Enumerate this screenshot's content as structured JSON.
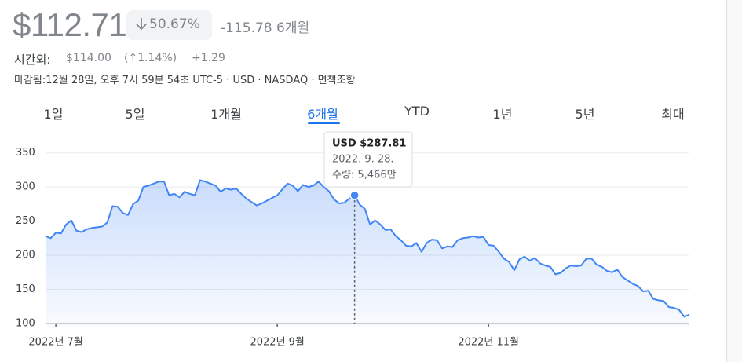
{
  "header": {
    "price": "$112.71",
    "change_pct": "50.67%",
    "change_abs": "-115.78",
    "period": "6개월"
  },
  "after_hours": {
    "label": "시간외:",
    "price": "$114.00",
    "change_pct": "(↑1.14%)",
    "change_abs": "+1.29"
  },
  "meta": "마감됨:12월 28일, 오후 7시 59분 54초 UTC-5 · USD · NASDAQ · 면책조항",
  "tabs": [
    "1일",
    "5일",
    "1개월",
    "6개월",
    "YTD",
    "1년",
    "5년",
    "최대"
  ],
  "chart_data": {
    "type": "line",
    "color": "#4285f4",
    "values": [
      228,
      225,
      233,
      232,
      245,
      251,
      236,
      234,
      238,
      240,
      241,
      242,
      248,
      272,
      271,
      262,
      259,
      275,
      280,
      300,
      302,
      305,
      308,
      308,
      288,
      290,
      285,
      293,
      290,
      288,
      310,
      308,
      305,
      302,
      293,
      298,
      296,
      298,
      290,
      283,
      278,
      273,
      276,
      280,
      284,
      288,
      297,
      305,
      302,
      294,
      303,
      300,
      302,
      308,
      300,
      294,
      282,
      276,
      277,
      283,
      287.81,
      274,
      268,
      245,
      251,
      245,
      237,
      238,
      228,
      222,
      214,
      213,
      218,
      205,
      218,
      223,
      222,
      210,
      213,
      212,
      222,
      225,
      226,
      228,
      226,
      227,
      215,
      214,
      205,
      195,
      190,
      178,
      194,
      198,
      192,
      196,
      188,
      185,
      183,
      172,
      174,
      181,
      185,
      184,
      185,
      195,
      195,
      186,
      183,
      177,
      175,
      179,
      168,
      163,
      158,
      155,
      147,
      148,
      136,
      134,
      133,
      124,
      123,
      120,
      110,
      113
    ],
    "xlim": [
      0,
      125
    ],
    "xticks": [
      {
        "value": 2,
        "label": "2022년 7월"
      },
      {
        "value": 45,
        "label": "2022년 9월"
      },
      {
        "value": 86,
        "label": "2022년 11월"
      }
    ],
    "ylim": [
      95,
      360
    ],
    "yticks": [
      100,
      150,
      200,
      250,
      300,
      350
    ],
    "grid": true,
    "tooltip": {
      "price": "USD $287.81",
      "date": "2022. 9. 28.",
      "volume": "수량: 5,466만"
    }
  }
}
